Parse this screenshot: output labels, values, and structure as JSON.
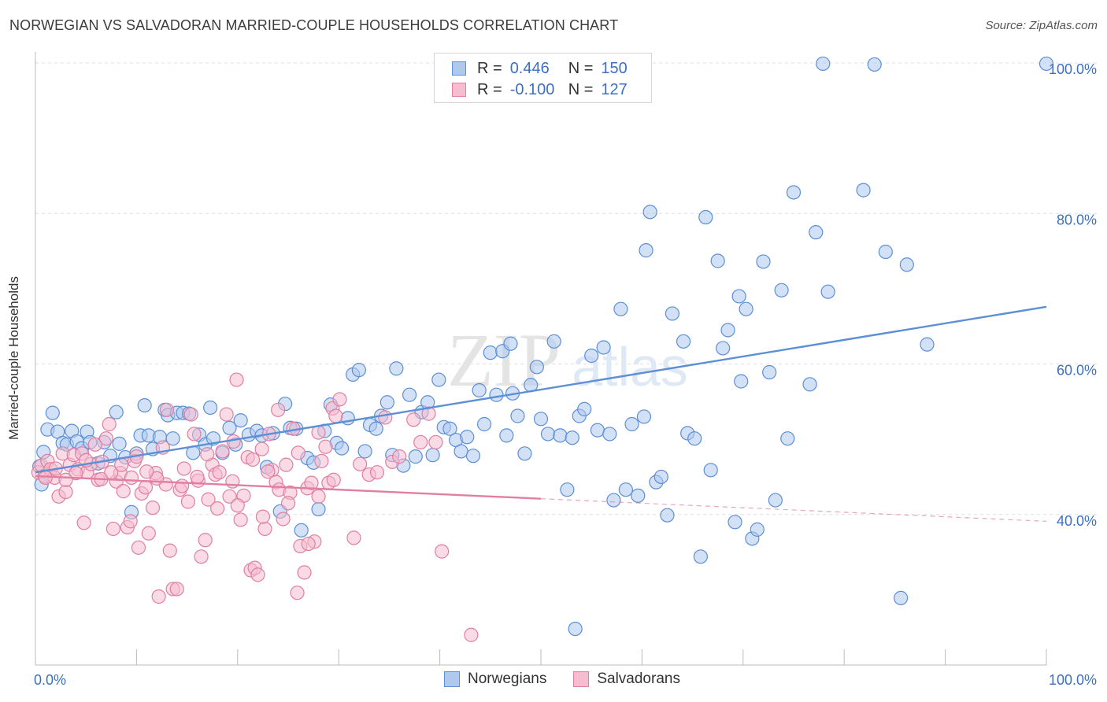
{
  "title": "NORWEGIAN VS SALVADORAN MARRIED-COUPLE HOUSEHOLDS CORRELATION CHART",
  "source": "Source: ZipAtlas.com",
  "watermark": {
    "zip": "ZIP",
    "atlas": "atlas"
  },
  "legend": {
    "r_label": "R =",
    "n_label": "N =",
    "rows": [
      {
        "r": "0.446",
        "n": "150",
        "fill": "#aec8ee",
        "stroke": "#5c8fd6"
      },
      {
        "r": "-0.100",
        "n": "127",
        "fill": "#f6bccf",
        "stroke": "#e07fa0"
      }
    ]
  },
  "chart_data": {
    "type": "scatter",
    "title": "NORWEGIAN VS SALVADORAN MARRIED-COUPLE HOUSEHOLDS CORRELATION CHART",
    "xlabel": "",
    "ylabel": "Married-couple Households",
    "xlim": [
      0,
      100
    ],
    "ylim": [
      20,
      100
    ],
    "x_tick_labels": [
      "0.0%",
      "100.0%"
    ],
    "y_ticks": [
      40,
      60,
      80,
      100
    ],
    "y_tick_labels": [
      "40.0%",
      "60.0%",
      "80.0%",
      "100.0%"
    ],
    "grid": "horizontal dashed",
    "legend_position": "top-center",
    "series": [
      {
        "name": "Norwegians",
        "color": "#5c8fd6",
        "fill": "#aec8ee",
        "trend": {
          "x": [
            0,
            100
          ],
          "y": [
            45.6,
            67.6
          ],
          "style": "solid"
        },
        "points": [
          [
            0.4,
            46.4
          ],
          [
            0.6,
            44.0
          ],
          [
            0.8,
            48.3
          ],
          [
            1.2,
            51.3
          ],
          [
            1.7,
            53.5
          ],
          [
            2.2,
            51.0
          ],
          [
            2.7,
            49.5
          ],
          [
            3.1,
            49.3
          ],
          [
            3.6,
            51.1
          ],
          [
            4.1,
            49.7
          ],
          [
            4.6,
            48.8
          ],
          [
            5.1,
            51.0
          ],
          [
            5.4,
            49.6
          ],
          [
            6.2,
            46.8
          ],
          [
            6.8,
            49.6
          ],
          [
            7.4,
            47.8
          ],
          [
            8.0,
            53.6
          ],
          [
            8.3,
            49.4
          ],
          [
            8.9,
            47.6
          ],
          [
            9.5,
            40.3
          ],
          [
            10.0,
            48.1
          ],
          [
            10.4,
            50.5
          ],
          [
            10.8,
            54.5
          ],
          [
            11.2,
            50.5
          ],
          [
            11.6,
            48.7
          ],
          [
            12.3,
            50.3
          ],
          [
            12.8,
            53.9
          ],
          [
            13.1,
            53.2
          ],
          [
            13.6,
            50.1
          ],
          [
            14.0,
            53.5
          ],
          [
            14.6,
            53.5
          ],
          [
            15.2,
            53.4
          ],
          [
            15.6,
            48.2
          ],
          [
            16.2,
            50.6
          ],
          [
            16.8,
            49.3
          ],
          [
            17.3,
            54.2
          ],
          [
            17.6,
            50.1
          ],
          [
            18.5,
            48.2
          ],
          [
            19.2,
            51.5
          ],
          [
            19.8,
            49.3
          ],
          [
            20.3,
            52.5
          ],
          [
            21.1,
            50.6
          ],
          [
            21.9,
            51.1
          ],
          [
            22.4,
            50.5
          ],
          [
            22.9,
            46.3
          ],
          [
            23.5,
            50.8
          ],
          [
            24.2,
            40.4
          ],
          [
            24.7,
            54.7
          ],
          [
            25.2,
            51.5
          ],
          [
            25.8,
            51.4
          ],
          [
            26.3,
            37.9
          ],
          [
            26.9,
            47.5
          ],
          [
            27.5,
            46.9
          ],
          [
            28.0,
            40.7
          ],
          [
            28.6,
            51.1
          ],
          [
            29.2,
            54.6
          ],
          [
            29.8,
            49.5
          ],
          [
            30.3,
            48.8
          ],
          [
            30.9,
            52.8
          ],
          [
            31.4,
            58.6
          ],
          [
            32.0,
            59.2
          ],
          [
            32.6,
            48.4
          ],
          [
            33.1,
            51.9
          ],
          [
            33.7,
            51.4
          ],
          [
            34.2,
            53.1
          ],
          [
            34.8,
            54.9
          ],
          [
            35.3,
            47.9
          ],
          [
            35.7,
            59.4
          ],
          [
            36.4,
            46.5
          ],
          [
            37.0,
            55.9
          ],
          [
            37.6,
            47.7
          ],
          [
            38.2,
            53.6
          ],
          [
            38.8,
            54.9
          ],
          [
            39.3,
            47.9
          ],
          [
            39.9,
            57.9
          ],
          [
            40.4,
            51.6
          ],
          [
            41.0,
            51.4
          ],
          [
            41.6,
            49.9
          ],
          [
            42.1,
            48.4
          ],
          [
            42.7,
            50.3
          ],
          [
            43.3,
            47.8
          ],
          [
            43.9,
            56.5
          ],
          [
            44.4,
            52.0
          ],
          [
            45.0,
            61.5
          ],
          [
            45.6,
            55.9
          ],
          [
            46.2,
            61.7
          ],
          [
            46.6,
            50.5
          ],
          [
            47.2,
            56.1
          ],
          [
            47.7,
            53.1
          ],
          [
            48.4,
            48.1
          ],
          [
            49.0,
            57.2
          ],
          [
            49.6,
            59.6
          ],
          [
            50.0,
            52.7
          ],
          [
            50.7,
            50.7
          ],
          [
            51.3,
            63.0
          ],
          [
            51.9,
            50.5
          ],
          [
            52.6,
            43.3
          ],
          [
            53.1,
            50.2
          ],
          [
            53.8,
            53.1
          ],
          [
            54.3,
            54.0
          ],
          [
            55.0,
            61.1
          ],
          [
            55.6,
            51.2
          ],
          [
            56.2,
            62.2
          ],
          [
            56.8,
            50.7
          ],
          [
            57.2,
            41.9
          ],
          [
            57.9,
            67.3
          ],
          [
            58.4,
            43.3
          ],
          [
            59.0,
            52.0
          ],
          [
            59.6,
            42.5
          ],
          [
            60.2,
            53.0
          ],
          [
            60.8,
            80.2
          ],
          [
            61.4,
            44.3
          ],
          [
            61.9,
            45.0
          ],
          [
            62.5,
            39.9
          ],
          [
            63.0,
            66.7
          ],
          [
            64.1,
            63.0
          ],
          [
            64.5,
            50.8
          ],
          [
            65.2,
            50.1
          ],
          [
            65.8,
            34.4
          ],
          [
            66.3,
            79.5
          ],
          [
            66.8,
            45.9
          ],
          [
            67.5,
            73.7
          ],
          [
            68.0,
            62.1
          ],
          [
            68.5,
            64.5
          ],
          [
            69.2,
            39.0
          ],
          [
            69.8,
            57.7
          ],
          [
            70.3,
            67.3
          ],
          [
            70.9,
            36.8
          ],
          [
            71.4,
            38.0
          ],
          [
            72.0,
            73.6
          ],
          [
            72.6,
            58.9
          ],
          [
            73.2,
            41.9
          ],
          [
            73.8,
            69.8
          ],
          [
            74.4,
            50.1
          ],
          [
            75.0,
            82.8
          ],
          [
            76.6,
            57.3
          ],
          [
            77.2,
            77.5
          ],
          [
            77.9,
            99.9
          ],
          [
            78.4,
            69.6
          ],
          [
            81.9,
            83.1
          ],
          [
            83.0,
            99.8
          ],
          [
            84.1,
            74.9
          ],
          [
            85.6,
            28.9
          ],
          [
            86.2,
            73.2
          ],
          [
            88.2,
            62.6
          ],
          [
            100,
            99.9
          ],
          [
            53.4,
            24.8
          ],
          [
            47.0,
            62.7
          ],
          [
            60.4,
            75.1
          ],
          [
            69.6,
            69.0
          ]
        ]
      },
      {
        "name": "Salvadorans",
        "color": "#e07fa0",
        "fill": "#f6bccf",
        "trend": {
          "x": [
            0,
            50
          ],
          "y": [
            45.1,
            42.1
          ],
          "style": "solid",
          "extension": {
            "x": [
              50,
              100
            ],
            "y": [
              42.1,
              39.1
            ],
            "style": "dashed"
          }
        },
        "points": [
          [
            0.3,
            45.6
          ],
          [
            0.6,
            46.5
          ],
          [
            0.9,
            45.1
          ],
          [
            1.2,
            47.1
          ],
          [
            1.5,
            46.0
          ],
          [
            1.9,
            44.9
          ],
          [
            2.3,
            42.4
          ],
          [
            2.7,
            48.1
          ],
          [
            3.0,
            43.0
          ],
          [
            3.4,
            46.6
          ],
          [
            3.8,
            47.9
          ],
          [
            4.2,
            46.0
          ],
          [
            4.6,
            48.1
          ],
          [
            4.8,
            38.9
          ],
          [
            5.1,
            45.6
          ],
          [
            5.5,
            46.7
          ],
          [
            5.9,
            49.3
          ],
          [
            6.2,
            44.6
          ],
          [
            6.6,
            47.0
          ],
          [
            7.0,
            50.1
          ],
          [
            7.3,
            52.0
          ],
          [
            7.7,
            38.1
          ],
          [
            8.0,
            44.4
          ],
          [
            8.4,
            45.5
          ],
          [
            8.7,
            43.1
          ],
          [
            9.1,
            38.3
          ],
          [
            9.4,
            39.1
          ],
          [
            9.8,
            47.1
          ],
          [
            10.2,
            35.6
          ],
          [
            10.5,
            42.8
          ],
          [
            10.9,
            43.6
          ],
          [
            11.2,
            37.5
          ],
          [
            11.6,
            40.9
          ],
          [
            11.9,
            45.5
          ],
          [
            12.2,
            29.1
          ],
          [
            12.6,
            48.9
          ],
          [
            12.9,
            44.0
          ],
          [
            13.3,
            35.2
          ],
          [
            13.6,
            30.1
          ],
          [
            14.0,
            30.1
          ],
          [
            14.3,
            43.3
          ],
          [
            14.7,
            46.1
          ],
          [
            15.1,
            41.7
          ],
          [
            15.4,
            53.3
          ],
          [
            15.7,
            50.7
          ],
          [
            16.1,
            44.5
          ],
          [
            16.4,
            34.4
          ],
          [
            16.8,
            36.6
          ],
          [
            17.1,
            42.0
          ],
          [
            17.5,
            46.6
          ],
          [
            17.8,
            45.3
          ],
          [
            18.2,
            45.6
          ],
          [
            18.5,
            48.4
          ],
          [
            18.9,
            53.3
          ],
          [
            19.2,
            42.4
          ],
          [
            19.6,
            49.7
          ],
          [
            19.9,
            57.9
          ],
          [
            20.3,
            39.3
          ],
          [
            20.6,
            42.5
          ],
          [
            21.0,
            47.6
          ],
          [
            21.3,
            32.6
          ],
          [
            21.7,
            32.9
          ],
          [
            22.0,
            32.0
          ],
          [
            22.4,
            48.7
          ],
          [
            22.7,
            38.1
          ],
          [
            23.1,
            50.7
          ],
          [
            23.4,
            45.9
          ],
          [
            23.8,
            44.3
          ],
          [
            24.1,
            43.3
          ],
          [
            24.5,
            39.4
          ],
          [
            24.8,
            46.6
          ],
          [
            25.2,
            42.9
          ],
          [
            25.5,
            51.4
          ],
          [
            25.9,
            29.6
          ],
          [
            26.2,
            35.8
          ],
          [
            26.6,
            32.3
          ],
          [
            26.9,
            43.5
          ],
          [
            27.3,
            44.2
          ],
          [
            27.6,
            36.4
          ],
          [
            28.0,
            42.4
          ],
          [
            28.3,
            47.1
          ],
          [
            28.7,
            49.0
          ],
          [
            29.0,
            44.2
          ],
          [
            29.4,
            54.1
          ],
          [
            29.7,
            53.1
          ],
          [
            30.1,
            55.3
          ],
          [
            31.5,
            36.9
          ],
          [
            32.1,
            46.7
          ],
          [
            33.0,
            45.3
          ],
          [
            33.8,
            45.6
          ],
          [
            34.6,
            52.9
          ],
          [
            35.3,
            47.0
          ],
          [
            36.0,
            47.7
          ],
          [
            37.4,
            52.6
          ],
          [
            38.1,
            49.6
          ],
          [
            38.9,
            53.4
          ],
          [
            39.6,
            49.6
          ],
          [
            40.2,
            35.1
          ],
          [
            43.1,
            24.0
          ],
          [
            12.0,
            44.8
          ],
          [
            13.0,
            53.9
          ],
          [
            14.5,
            43.8
          ],
          [
            16.0,
            45.0
          ],
          [
            17.0,
            48.0
          ],
          [
            18.0,
            40.8
          ],
          [
            19.5,
            44.4
          ],
          [
            20.0,
            41.2
          ],
          [
            21.5,
            47.3
          ],
          [
            22.5,
            39.7
          ],
          [
            23.0,
            45.7
          ],
          [
            24.0,
            53.9
          ],
          [
            25.0,
            41.5
          ],
          [
            26.0,
            48.2
          ],
          [
            27.0,
            36.1
          ],
          [
            28.0,
            50.9
          ],
          [
            29.5,
            44.6
          ],
          [
            6.5,
            44.7
          ],
          [
            7.5,
            45.6
          ],
          [
            8.5,
            46.6
          ],
          [
            9.5,
            44.9
          ],
          [
            10.0,
            47.7
          ],
          [
            11.0,
            45.7
          ],
          [
            5.0,
            47.2
          ],
          [
            4.0,
            45.5
          ],
          [
            3.0,
            44.6
          ],
          [
            2.0,
            46.1
          ],
          [
            1.0,
            44.9
          ]
        ]
      }
    ]
  },
  "bottom_legend": [
    {
      "label": "Norwegians",
      "fill": "#aec8ee",
      "stroke": "#5c8fd6"
    },
    {
      "label": "Salvadorans",
      "fill": "#f6bccf",
      "stroke": "#e07fa0"
    }
  ]
}
